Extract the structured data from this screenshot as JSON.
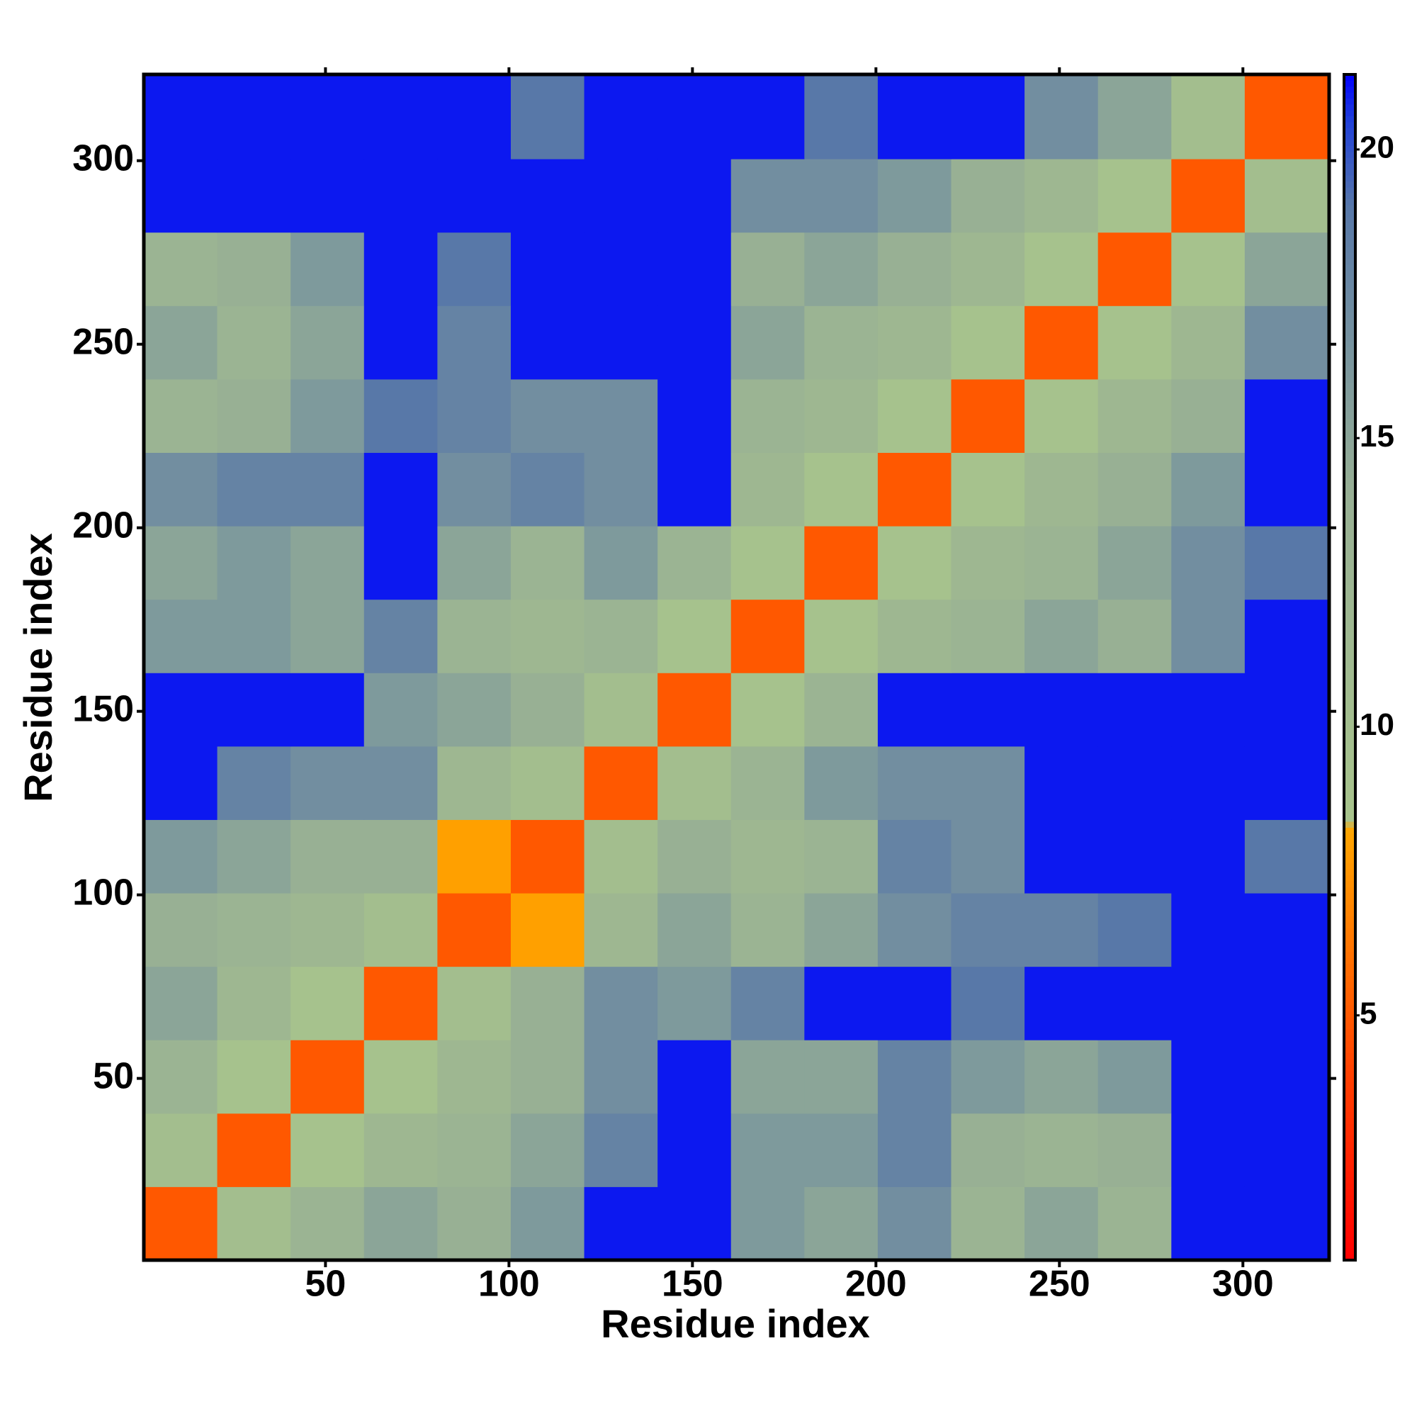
{
  "chart_data": {
    "type": "heatmap",
    "xlabel": "Residue index",
    "ylabel": "Residue index",
    "xbins": [
      0.5,
      20.5,
      40.5,
      60.5,
      80.5,
      100.5,
      120.5,
      140.5,
      160.5,
      180.5,
      200.5,
      220.5,
      240.5,
      260.5,
      280.5,
      300.5,
      323.5
    ],
    "ybins": [
      0.5,
      20.5,
      40.5,
      60.5,
      80.5,
      100.5,
      120.5,
      140.5,
      160.5,
      180.5,
      200.5,
      220.5,
      240.5,
      260.5,
      280.5,
      300.5,
      323.5
    ],
    "z": [
      [
        5,
        10,
        13,
        15,
        14,
        16,
        21,
        21,
        16,
        15,
        17,
        13,
        15,
        13,
        21,
        21
      ],
      [
        10,
        5,
        9,
        12,
        13,
        15,
        18,
        21,
        16,
        16,
        18,
        14,
        13,
        14,
        21,
        21
      ],
      [
        13,
        9,
        5,
        9,
        12,
        14,
        17,
        21,
        15,
        15,
        18,
        16,
        15,
        16,
        21,
        21
      ],
      [
        15,
        12,
        9,
        5,
        10,
        14,
        17,
        16,
        18,
        21,
        21,
        19,
        21,
        21,
        21,
        21
      ],
      [
        14,
        13,
        12,
        10,
        5,
        8,
        12,
        15,
        13,
        15,
        17,
        18,
        18,
        19,
        21,
        21
      ],
      [
        16,
        15,
        14,
        14,
        8,
        5,
        10,
        14,
        12,
        13,
        18,
        17,
        21,
        21,
        21,
        19
      ],
      [
        21,
        18,
        17,
        17,
        12,
        10,
        5,
        10,
        13,
        16,
        17,
        17,
        21,
        21,
        21,
        21
      ],
      [
        21,
        21,
        21,
        16,
        15,
        14,
        10,
        5,
        9,
        13,
        21,
        21,
        21,
        21,
        21,
        21
      ],
      [
        16,
        16,
        15,
        18,
        13,
        12,
        13,
        9,
        5,
        9,
        12,
        13,
        15,
        14,
        17,
        21
      ],
      [
        15,
        16,
        15,
        21,
        15,
        13,
        16,
        13,
        9,
        5,
        9,
        12,
        13,
        15,
        17,
        19
      ],
      [
        17,
        18,
        18,
        21,
        17,
        18,
        17,
        21,
        12,
        9,
        5,
        9,
        12,
        14,
        16,
        21
      ],
      [
        13,
        14,
        16,
        19,
        18,
        17,
        17,
        21,
        13,
        12,
        9,
        5,
        9,
        12,
        14,
        21
      ],
      [
        15,
        13,
        15,
        21,
        18,
        21,
        21,
        21,
        15,
        13,
        12,
        9,
        5,
        9,
        12,
        17
      ],
      [
        13,
        14,
        16,
        21,
        19,
        21,
        21,
        21,
        14,
        15,
        14,
        12,
        9,
        5,
        9,
        15
      ],
      [
        21,
        21,
        21,
        21,
        21,
        21,
        21,
        21,
        17,
        17,
        16,
        14,
        12,
        9,
        5,
        10
      ],
      [
        21,
        21,
        21,
        21,
        21,
        19,
        21,
        21,
        21,
        19,
        21,
        21,
        17,
        15,
        10,
        5
      ]
    ],
    "xlim": [
      0.5,
      323.5
    ],
    "ylim": [
      0.5,
      323.5
    ],
    "xticks": [
      50,
      100,
      150,
      200,
      250,
      300
    ],
    "yticks": [
      50,
      100,
      150,
      200,
      250,
      300
    ],
    "clim": [
      0.76,
      21.3
    ],
    "cticks": [
      5,
      10,
      15,
      20
    ],
    "colorscale": [
      [
        0.76,
        "#ff0000"
      ],
      [
        4,
        "#ff4000"
      ],
      [
        8.2,
        "#ffa500"
      ],
      [
        8.4,
        "#a8c48c"
      ],
      [
        14,
        "#98b094"
      ],
      [
        19,
        "#5878a8"
      ],
      [
        20.5,
        "#2040d8"
      ],
      [
        21.3,
        "#0000ff"
      ]
    ]
  }
}
